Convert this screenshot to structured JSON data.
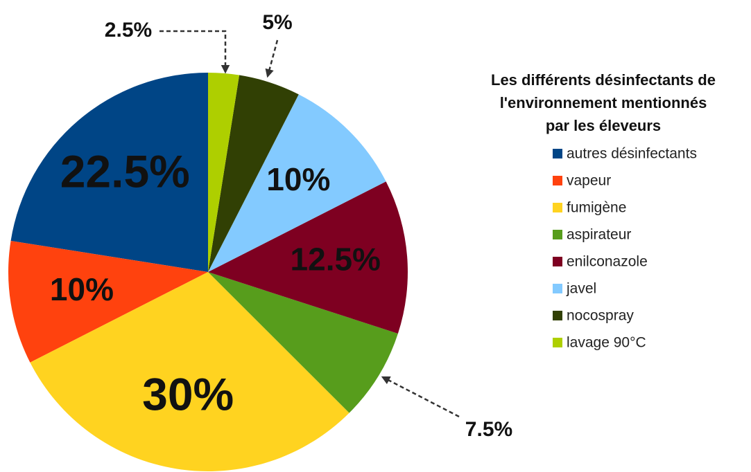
{
  "chart_data": {
    "type": "pie",
    "legend_title": [
      "Les différents désinfectants de",
      "l'environnement mentionnés",
      "par les éleveurs"
    ],
    "categories": [
      "autres désinfectants",
      "vapeur",
      "fumigène",
      "aspirateur",
      "enilconazole",
      "javel",
      "nocospray",
      "lavage 90°C"
    ],
    "values": [
      22.5,
      10,
      30,
      7.5,
      12.5,
      10,
      5,
      2.5
    ],
    "value_labels": [
      "22.5%",
      "10%",
      "30%",
      "7.5%",
      "12.5%",
      "10%",
      "5%",
      "2.5%"
    ],
    "colors": [
      "#004586",
      "#ff420e",
      "#ffd320",
      "#579d1c",
      "#7e0021",
      "#83caff",
      "#314004",
      "#aecf00"
    ],
    "legend": "right"
  }
}
